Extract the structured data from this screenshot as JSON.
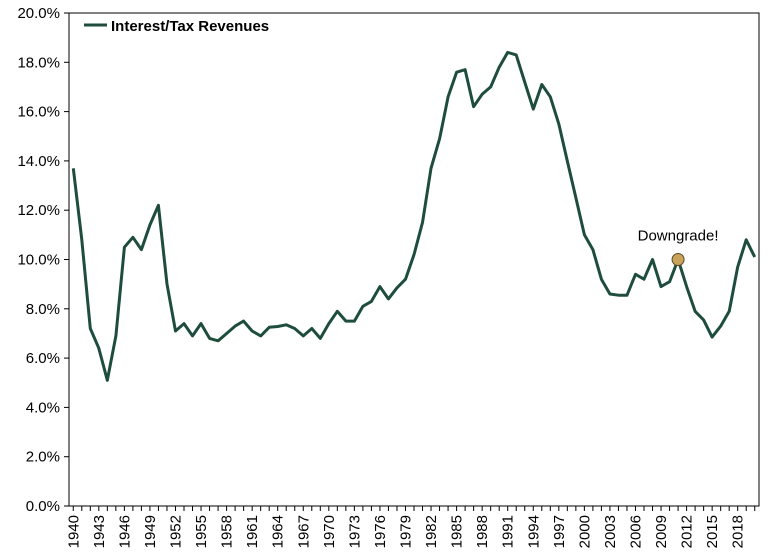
{
  "chart_data": {
    "type": "line",
    "title": "",
    "xlabel": "",
    "ylabel": "",
    "ylim": [
      0,
      20
    ],
    "y_tick_labels": [
      "0.0%",
      "2.0%",
      "4.0%",
      "6.0%",
      "8.0%",
      "10.0%",
      "12.0%",
      "14.0%",
      "16.0%",
      "18.0%",
      "20.0%"
    ],
    "x_tick_labels": [
      "1940",
      "1943",
      "1946",
      "1949",
      "1952",
      "1955",
      "1958",
      "1961",
      "1964",
      "1967",
      "1970",
      "1973",
      "1976",
      "1979",
      "1982",
      "1985",
      "1988",
      "1991",
      "1994",
      "1997",
      "2000",
      "2003",
      "2006",
      "2009",
      "2012",
      "2015",
      "2018"
    ],
    "x_tick_values": [
      1940,
      1943,
      1946,
      1949,
      1952,
      1955,
      1958,
      1961,
      1964,
      1967,
      1970,
      1973,
      1976,
      1979,
      1982,
      1985,
      1988,
      1991,
      1994,
      1997,
      2000,
      2003,
      2006,
      2009,
      2012,
      2015,
      2018
    ],
    "xlim": [
      1939.5,
      2020.5
    ],
    "grid": false,
    "legend": "top-left",
    "line_color": "#1e4d3c",
    "series": [
      {
        "name": "Interest/Tax Revenues",
        "x": [
          1940,
          1941,
          1942,
          1943,
          1944,
          1945,
          1946,
          1947,
          1948,
          1949,
          1950,
          1951,
          1952,
          1953,
          1954,
          1955,
          1956,
          1957,
          1958,
          1959,
          1960,
          1961,
          1962,
          1963,
          1964,
          1965,
          1966,
          1967,
          1968,
          1969,
          1970,
          1971,
          1972,
          1973,
          1974,
          1975,
          1976,
          1977,
          1978,
          1979,
          1980,
          1981,
          1982,
          1983,
          1984,
          1985,
          1986,
          1987,
          1988,
          1989,
          1990,
          1991,
          1992,
          1993,
          1994,
          1995,
          1996,
          1997,
          1998,
          1999,
          2000,
          2001,
          2002,
          2003,
          2004,
          2005,
          2006,
          2007,
          2008,
          2009,
          2010,
          2011,
          2012,
          2013,
          2014,
          2015,
          2016,
          2017,
          2018,
          2019,
          2020
        ],
        "values": [
          13.7,
          10.8,
          7.2,
          6.4,
          5.1,
          6.9,
          10.5,
          10.9,
          10.4,
          11.4,
          12.2,
          9.0,
          7.1,
          7.4,
          6.9,
          7.4,
          6.8,
          6.7,
          7.0,
          7.3,
          7.5,
          7.1,
          6.9,
          7.25,
          7.28,
          7.35,
          7.2,
          6.9,
          7.2,
          6.8,
          7.4,
          7.9,
          7.5,
          7.5,
          8.1,
          8.3,
          8.9,
          8.4,
          8.85,
          9.2,
          10.2,
          11.5,
          13.7,
          14.9,
          16.6,
          17.6,
          17.7,
          16.2,
          16.7,
          17.0,
          17.8,
          18.4,
          18.3,
          17.2,
          16.1,
          17.1,
          16.6,
          15.5,
          14.0,
          12.5,
          11.0,
          10.4,
          9.2,
          8.6,
          8.55,
          8.55,
          9.4,
          9.2,
          10.0,
          8.9,
          9.1,
          10.0,
          8.9,
          7.9,
          7.55,
          6.85,
          7.3,
          7.9,
          9.7,
          10.8,
          10.1
        ]
      }
    ],
    "annotations": [
      {
        "text": "Downgrade!",
        "x": 2011,
        "y": 10.0,
        "marker_color": "#c9a35a"
      }
    ]
  }
}
